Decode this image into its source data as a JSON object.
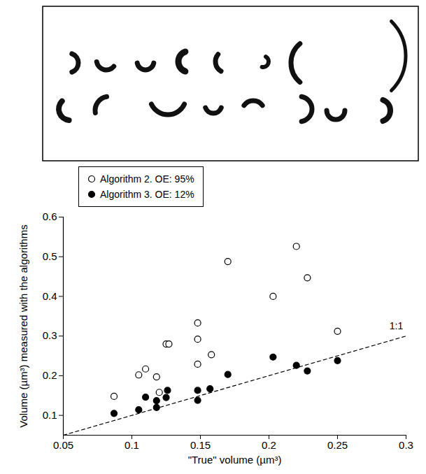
{
  "chart_data": {
    "type": "scatter",
    "xlabel": "\"True\" volume (µm³)",
    "ylabel": "Volume (µm³) measured with the algorithms",
    "xlim": [
      0.05,
      0.3
    ],
    "xticks": [
      0.05,
      0.1,
      0.15,
      0.2,
      0.25,
      0.3
    ],
    "ylim": [
      0.05,
      0.6
    ],
    "yticks": [
      0.1,
      0.2,
      0.3,
      0.4,
      0.5,
      0.6
    ],
    "grid": false,
    "legend": "top-left",
    "reference_line": {
      "label": "1:1",
      "x": [
        0.05,
        0.3
      ],
      "y": [
        0.05,
        0.3
      ],
      "line_style": "dashed"
    },
    "series": [
      {
        "name": "Algorithm 2. OE: 95%",
        "color": "#000000",
        "marker": "open circle",
        "x": [
          0.087,
          0.105,
          0.11,
          0.118,
          0.12,
          0.125,
          0.127,
          0.148,
          0.148,
          0.148,
          0.158,
          0.17,
          0.203,
          0.22,
          0.228,
          0.25
        ],
        "values": [
          0.148,
          0.202,
          0.217,
          0.197,
          0.158,
          0.28,
          0.28,
          0.333,
          0.292,
          0.229,
          0.253,
          0.488,
          0.4,
          0.526,
          0.447,
          0.312
        ]
      },
      {
        "name": "Algorithm 3. OE: 12%",
        "color": "#000000",
        "marker": "filled circle",
        "x": [
          0.087,
          0.105,
          0.11,
          0.118,
          0.118,
          0.125,
          0.126,
          0.148,
          0.148,
          0.157,
          0.17,
          0.203,
          0.22,
          0.228,
          0.25
        ],
        "values": [
          0.105,
          0.114,
          0.146,
          0.137,
          0.12,
          0.145,
          0.163,
          0.163,
          0.138,
          0.167,
          0.203,
          0.247,
          0.226,
          0.212,
          0.238
        ]
      }
    ]
  }
}
